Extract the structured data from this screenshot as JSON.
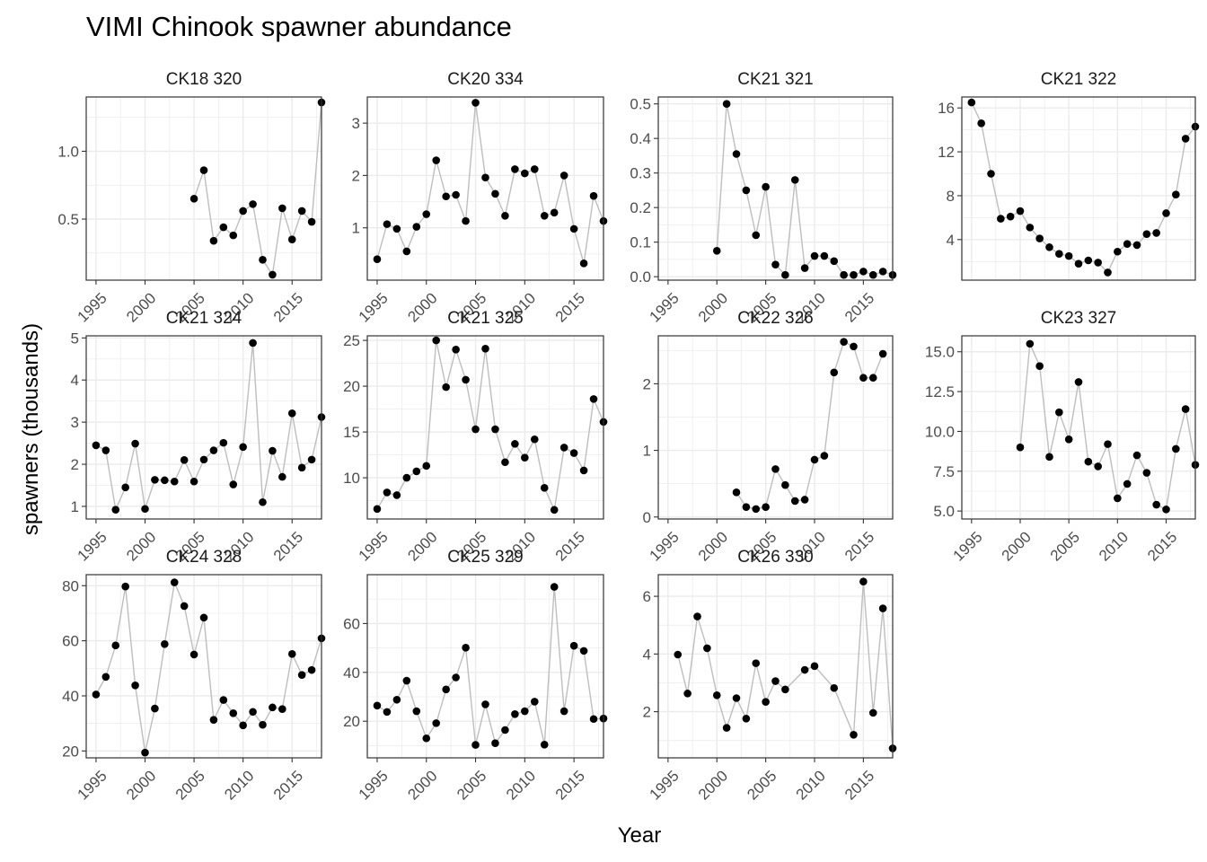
{
  "chart_data": {
    "type": "scatter",
    "title": "VIMI Chinook spawner abundance",
    "xlabel": "Year",
    "ylabel": "spawners (thousands)",
    "x_ticks": [
      1995,
      2000,
      2005,
      2010,
      2015
    ],
    "xlim": [
      1994,
      2018
    ],
    "grid": true,
    "colors": {
      "point": "#000000",
      "line": "#bebebe",
      "panel_border": "#333333",
      "grid": "#ebebeb"
    },
    "panels": [
      {
        "name": "CK18 320",
        "ylim": [
          0.05,
          1.4
        ],
        "y_ticks": [
          {
            "v": 0.5,
            "l": "0.5"
          },
          {
            "v": 1.0,
            "l": "1.0"
          }
        ],
        "x": [
          2005,
          2006,
          2007,
          2008,
          2009,
          2010,
          2011,
          2012,
          2013,
          2014,
          2015,
          2016,
          2017,
          2018
        ],
        "y": [
          0.65,
          0.86,
          0.34,
          0.44,
          0.38,
          0.56,
          0.61,
          0.2,
          0.09,
          0.58,
          0.35,
          0.56,
          0.48,
          1.36
        ]
      },
      {
        "name": "CK20 334",
        "ylim": [
          0.0,
          3.5
        ],
        "y_ticks": [
          {
            "v": 1,
            "l": "1"
          },
          {
            "v": 2,
            "l": "2"
          },
          {
            "v": 3,
            "l": "3"
          }
        ],
        "x": [
          1995,
          1996,
          1997,
          1998,
          1999,
          2000,
          2001,
          2002,
          2003,
          2004,
          2005,
          2006,
          2007,
          2008,
          2009,
          2010,
          2011,
          2012,
          2013,
          2014,
          2015,
          2016,
          2017,
          2018
        ],
        "y": [
          0.4,
          1.07,
          0.98,
          0.55,
          1.02,
          1.26,
          2.29,
          1.6,
          1.63,
          1.13,
          3.39,
          1.96,
          1.65,
          1.23,
          2.12,
          2.04,
          2.12,
          1.23,
          1.29,
          2.0,
          0.98,
          0.32,
          1.61,
          1.13
        ]
      },
      {
        "name": "CK21 321",
        "ylim": [
          -0.01,
          0.52
        ],
        "y_ticks": [
          {
            "v": 0.0,
            "l": "0.0"
          },
          {
            "v": 0.1,
            "l": "0.1"
          },
          {
            "v": 0.2,
            "l": "0.2"
          },
          {
            "v": 0.3,
            "l": "0.3"
          },
          {
            "v": 0.4,
            "l": "0.4"
          },
          {
            "v": 0.5,
            "l": "0.5"
          }
        ],
        "x": [
          2000,
          2001,
          2002,
          2003,
          2004,
          2005,
          2006,
          2007,
          2008,
          2009,
          2010,
          2011,
          2012,
          2013,
          2014,
          2015,
          2016,
          2017,
          2018
        ],
        "y": [
          0.075,
          0.5,
          0.355,
          0.25,
          0.12,
          0.26,
          0.035,
          0.005,
          0.28,
          0.025,
          0.06,
          0.06,
          0.045,
          0.005,
          0.005,
          0.015,
          0.005,
          0.015,
          0.005
        ]
      },
      {
        "name": "CK21 322",
        "ylim": [
          0.3,
          17.0
        ],
        "y_ticks": [
          {
            "v": 4,
            "l": "4"
          },
          {
            "v": 8,
            "l": "8"
          },
          {
            "v": 12,
            "l": "12"
          },
          {
            "v": 16,
            "l": "16"
          }
        ],
        "x": [
          1995,
          1996,
          1997,
          1998,
          1999,
          2000,
          2001,
          2002,
          2003,
          2004,
          2005,
          2006,
          2007,
          2008,
          2009,
          2010,
          2011,
          2012,
          2013,
          2014,
          2015,
          2016,
          2017,
          2018
        ],
        "y": [
          16.5,
          14.6,
          10.0,
          5.9,
          6.1,
          6.6,
          5.1,
          4.1,
          3.3,
          2.7,
          2.5,
          1.8,
          2.1,
          1.9,
          1.0,
          2.9,
          3.6,
          3.5,
          4.5,
          4.6,
          6.4,
          8.1,
          13.2,
          14.3
        ]
      },
      {
        "name": "CK21 324",
        "ylim": [
          0.7,
          5.05
        ],
        "y_ticks": [
          {
            "v": 1,
            "l": "1"
          },
          {
            "v": 2,
            "l": "2"
          },
          {
            "v": 3,
            "l": "3"
          },
          {
            "v": 4,
            "l": "4"
          },
          {
            "v": 5,
            "l": "5"
          }
        ],
        "x": [
          1995,
          1996,
          1997,
          1998,
          1999,
          2000,
          2001,
          2002,
          2003,
          2004,
          2005,
          2006,
          2007,
          2008,
          2009,
          2010,
          2011,
          2012,
          2013,
          2014,
          2015,
          2016,
          2017,
          2018
        ],
        "y": [
          2.45,
          2.33,
          0.92,
          1.45,
          2.49,
          0.94,
          1.63,
          1.62,
          1.59,
          2.1,
          1.59,
          2.11,
          2.33,
          2.51,
          1.52,
          2.41,
          4.88,
          1.1,
          2.32,
          1.7,
          3.21,
          1.92,
          2.11,
          3.12
        ]
      },
      {
        "name": "CK21 325",
        "ylim": [
          5.5,
          25.5
        ],
        "y_ticks": [
          {
            "v": 10,
            "l": "10"
          },
          {
            "v": 15,
            "l": "15"
          },
          {
            "v": 20,
            "l": "20"
          },
          {
            "v": 25,
            "l": "25"
          }
        ],
        "x": [
          1995,
          1996,
          1997,
          1998,
          1999,
          2000,
          2001,
          2002,
          2003,
          2004,
          2005,
          2006,
          2007,
          2008,
          2009,
          2010,
          2011,
          2012,
          2013,
          2014,
          2015,
          2016,
          2017,
          2018
        ],
        "y": [
          6.6,
          8.4,
          8.1,
          10.0,
          10.7,
          11.3,
          25.0,
          19.9,
          24.0,
          20.7,
          15.3,
          24.1,
          15.3,
          11.7,
          13.7,
          12.2,
          14.2,
          8.9,
          6.5,
          13.3,
          12.7,
          10.8,
          18.6,
          16.1
        ]
      },
      {
        "name": "CK22 326",
        "ylim": [
          -0.03,
          2.72
        ],
        "y_ticks": [
          {
            "v": 0,
            "l": "0"
          },
          {
            "v": 1,
            "l": "1"
          },
          {
            "v": 2,
            "l": "2"
          }
        ],
        "x": [
          2002,
          2003,
          2004,
          2005,
          2006,
          2007,
          2008,
          2009,
          2010,
          2011,
          2012,
          2013,
          2014,
          2015,
          2016,
          2017
        ],
        "y": [
          0.37,
          0.15,
          0.12,
          0.15,
          0.72,
          0.48,
          0.24,
          0.26,
          0.86,
          0.92,
          2.17,
          2.63,
          2.56,
          2.09,
          2.09,
          2.45
        ]
      },
      {
        "name": "CK23 327",
        "ylim": [
          4.5,
          16.0
        ],
        "y_ticks": [
          {
            "v": 5.0,
            "l": "5.0"
          },
          {
            "v": 7.5,
            "l": "7.5"
          },
          {
            "v": 10.0,
            "l": "10.0"
          },
          {
            "v": 12.5,
            "l": "12.5"
          },
          {
            "v": 15.0,
            "l": "15.0"
          }
        ],
        "x": [
          2000,
          2001,
          2002,
          2003,
          2004,
          2005,
          2006,
          2007,
          2008,
          2009,
          2010,
          2011,
          2012,
          2013,
          2014,
          2015,
          2016,
          2017,
          2018
        ],
        "y": [
          9.0,
          15.5,
          14.1,
          8.4,
          11.2,
          9.5,
          13.1,
          8.1,
          7.8,
          9.2,
          5.8,
          6.7,
          8.5,
          7.4,
          5.4,
          5.1,
          8.9,
          11.4,
          7.9
        ]
      },
      {
        "name": "CK24 328",
        "ylim": [
          17.5,
          84.0
        ],
        "y_ticks": [
          {
            "v": 20,
            "l": "20"
          },
          {
            "v": 40,
            "l": "40"
          },
          {
            "v": 60,
            "l": "60"
          },
          {
            "v": 80,
            "l": "80"
          }
        ],
        "x": [
          1995,
          1996,
          1997,
          1998,
          1999,
          2000,
          2001,
          2002,
          2003,
          2004,
          2005,
          2006,
          2007,
          2008,
          2009,
          2010,
          2011,
          2012,
          2013,
          2014,
          2015,
          2016,
          2017,
          2018
        ],
        "y": [
          40.5,
          46.9,
          58.3,
          79.7,
          43.8,
          19.4,
          35.4,
          58.8,
          81.2,
          72.6,
          55.0,
          68.4,
          31.3,
          38.5,
          33.7,
          29.3,
          34.2,
          29.5,
          35.8,
          35.2,
          55.2,
          47.6,
          49.4,
          60.9
        ]
      },
      {
        "name": "CK25 329",
        "ylim": [
          5.0,
          80.0
        ],
        "y_ticks": [
          {
            "v": 20,
            "l": "20"
          },
          {
            "v": 40,
            "l": "40"
          },
          {
            "v": 60,
            "l": "60"
          }
        ],
        "x": [
          1995,
          1996,
          1997,
          1998,
          1999,
          2000,
          2001,
          2002,
          2003,
          2004,
          2005,
          2006,
          2007,
          2008,
          2009,
          2010,
          2011,
          2012,
          2013,
          2014,
          2015,
          2016,
          2017,
          2018
        ],
        "y": [
          26.4,
          23.8,
          28.8,
          36.6,
          24.1,
          13.0,
          19.2,
          33.0,
          37.9,
          50.1,
          10.3,
          26.9,
          11.0,
          16.4,
          22.9,
          24.1,
          28.0,
          10.4,
          75.0,
          24.1,
          50.9,
          48.8,
          20.9,
          21.1
        ]
      },
      {
        "name": "CK26 330",
        "ylim": [
          0.4,
          6.75
        ],
        "y_ticks": [
          {
            "v": 2,
            "l": "2"
          },
          {
            "v": 4,
            "l": "4"
          },
          {
            "v": 6,
            "l": "6"
          }
        ],
        "x": [
          1996,
          1997,
          1998,
          1999,
          2000,
          2001,
          2002,
          2003,
          2004,
          2005,
          2006,
          2007,
          2009,
          2010,
          2012,
          2014,
          2015,
          2016,
          2017,
          2018
        ],
        "y": [
          3.98,
          2.63,
          5.3,
          4.2,
          2.57,
          1.44,
          2.47,
          1.76,
          3.68,
          2.34,
          3.06,
          2.77,
          3.45,
          3.58,
          2.82,
          1.2,
          6.51,
          1.96,
          5.58,
          0.73
        ]
      }
    ]
  }
}
